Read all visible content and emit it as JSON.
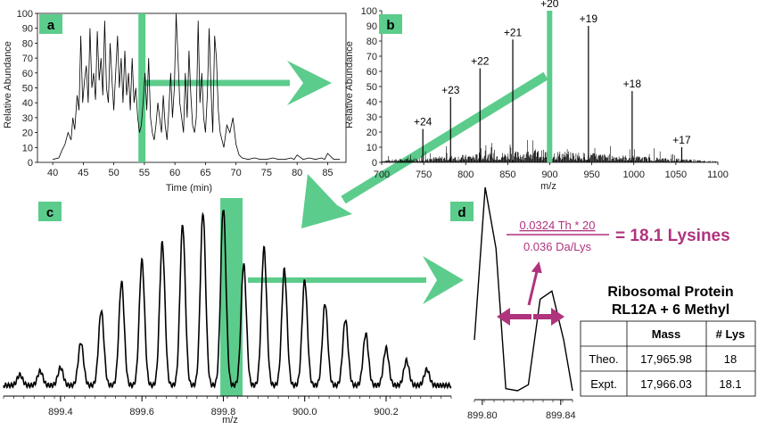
{
  "colors": {
    "accent_green": "#5ccc8c",
    "highlight_magenta": "#b0337e",
    "trace": "#000000"
  },
  "chart_data": [
    {
      "id": "a",
      "type": "line",
      "panel_label": "a",
      "xlabel": "Time (min)",
      "ylabel": "Relative Abundance",
      "xlim": [
        37.5,
        88
      ],
      "ylim": [
        0,
        100
      ],
      "xticks": [
        40,
        45,
        50,
        55,
        60,
        65,
        70,
        75,
        80,
        85
      ],
      "yticks": [
        0,
        10,
        20,
        30,
        40,
        50,
        60,
        70,
        80,
        90,
        100
      ],
      "highlight_x": 54.6,
      "series": [
        {
          "x": [
            40,
            41,
            41.5,
            42,
            42.5,
            43,
            43.3,
            43.6,
            44,
            44.3,
            44.6,
            44.9,
            45.2,
            45.5,
            45.8,
            46.1,
            46.4,
            46.7,
            47,
            47.3,
            47.6,
            47.9,
            48.2,
            48.5,
            48.8,
            49.1,
            49.4,
            49.7,
            50,
            50.3,
            50.6,
            50.9,
            51.2,
            51.5,
            51.8,
            52.1,
            52.4,
            52.7,
            53,
            53.3,
            53.6,
            53.9,
            54.2,
            54.5,
            54.8,
            55.1,
            55.4,
            55.7,
            56,
            56.3,
            56.6,
            56.9,
            57.2,
            57.5,
            57.8,
            58.1,
            58.4,
            58.7,
            59,
            59.3,
            59.6,
            59.9,
            60.2,
            60.5,
            60.8,
            61.1,
            61.4,
            61.7,
            62,
            62.3,
            62.6,
            62.9,
            63.2,
            63.5,
            63.8,
            64.1,
            64.4,
            64.7,
            65,
            65.3,
            65.6,
            65.9,
            66.2,
            66.5,
            66.8,
            67.1,
            67.4,
            67.7,
            68,
            68.5,
            69,
            69.5,
            70,
            70.5,
            71,
            72,
            73,
            74,
            75,
            76,
            77,
            78,
            79,
            79.5,
            80,
            81,
            82,
            83,
            84,
            84.5,
            85,
            86,
            87
          ],
          "y": [
            2,
            3,
            8,
            12,
            20,
            15,
            30,
            22,
            45,
            35,
            85,
            40,
            55,
            65,
            40,
            90,
            50,
            60,
            42,
            88,
            55,
            70,
            45,
            95,
            50,
            40,
            80,
            55,
            35,
            60,
            85,
            50,
            70,
            40,
            75,
            45,
            60,
            35,
            70,
            40,
            50,
            30,
            20,
            25,
            40,
            60,
            35,
            70,
            30,
            20,
            15,
            25,
            40,
            30,
            20,
            45,
            25,
            15,
            35,
            60,
            30,
            50,
            100,
            70,
            40,
            30,
            20,
            60,
            30,
            75,
            45,
            25,
            20,
            30,
            95,
            40,
            60,
            30,
            20,
            45,
            90,
            50,
            20,
            85,
            70,
            35,
            20,
            15,
            10,
            25,
            20,
            30,
            12,
            5,
            3,
            2,
            3,
            2,
            2,
            3,
            2,
            2,
            3,
            2,
            5,
            2,
            3,
            2,
            3,
            2,
            6,
            2,
            2
          ]
        }
      ]
    },
    {
      "id": "b",
      "type": "line",
      "panel_label": "b",
      "xlabel": "m/z",
      "ylabel": "Relative Abundance",
      "xlim": [
        700,
        1100
      ],
      "ylim": [
        0,
        100
      ],
      "xticks": [
        700,
        750,
        800,
        850,
        900,
        950,
        1000,
        1050,
        1100
      ],
      "yticks": [
        0,
        10,
        20,
        30,
        40,
        50,
        60,
        70,
        80,
        90,
        100
      ],
      "highlight_x": 899.8,
      "peaks": [
        {
          "label": "+24",
          "x": 749,
          "y": 22
        },
        {
          "label": "+23",
          "x": 782,
          "y": 43
        },
        {
          "label": "+22",
          "x": 817,
          "y": 62
        },
        {
          "label": "+21",
          "x": 856,
          "y": 81
        },
        {
          "label": "+20",
          "x": 899.8,
          "y": 100
        },
        {
          "label": "+19",
          "x": 946,
          "y": 90
        },
        {
          "label": "+18",
          "x": 998,
          "y": 47
        },
        {
          "label": "+17",
          "x": 1057,
          "y": 10
        }
      ]
    },
    {
      "id": "c",
      "type": "line",
      "panel_label": "c",
      "xlabel": "m/z",
      "xlim": [
        899.26,
        900.36
      ],
      "ylim": [
        0,
        100
      ],
      "xticks": [
        899.4,
        899.6,
        899.8,
        900.0,
        900.2
      ],
      "highlight_x": 899.82,
      "peaks": [
        {
          "x": 899.3,
          "y": 6
        },
        {
          "x": 899.35,
          "y": 8
        },
        {
          "x": 899.4,
          "y": 10
        },
        {
          "x": 899.45,
          "y": 24
        },
        {
          "x": 899.5,
          "y": 42
        },
        {
          "x": 899.55,
          "y": 58
        },
        {
          "x": 899.6,
          "y": 70
        },
        {
          "x": 899.65,
          "y": 80
        },
        {
          "x": 899.7,
          "y": 90
        },
        {
          "x": 899.75,
          "y": 97
        },
        {
          "x": 899.8,
          "y": 100
        },
        {
          "x": 899.85,
          "y": 68
        },
        {
          "x": 899.9,
          "y": 77
        },
        {
          "x": 899.95,
          "y": 65
        },
        {
          "x": 900.0,
          "y": 59
        },
        {
          "x": 900.05,
          "y": 46
        },
        {
          "x": 900.1,
          "y": 37
        },
        {
          "x": 900.15,
          "y": 29
        },
        {
          "x": 900.2,
          "y": 21
        },
        {
          "x": 900.25,
          "y": 14
        },
        {
          "x": 900.3,
          "y": 9
        }
      ]
    },
    {
      "id": "d",
      "type": "line",
      "panel_label": "d",
      "xlim": [
        899.796,
        899.846
      ],
      "ylim": [
        0,
        100
      ],
      "xticks": [
        899.8,
        899.84
      ],
      "xticklabels": [
        "899.80",
        "899.84"
      ],
      "series": [
        {
          "x": [
            899.796,
            899.8015,
            899.807,
            899.812,
            899.818,
            899.8235,
            899.8295,
            899.8355,
            899.8415,
            899.846
          ],
          "y": [
            25,
            100,
            70,
            1,
            0,
            3,
            45,
            49,
            25,
            0
          ]
        }
      ]
    }
  ],
  "equation": {
    "numerator": "0.0324 Th * 20",
    "denominator": "0.036 Da/Lys",
    "result": "= 18.1 Lysines"
  },
  "protein": {
    "title_line1": "Ribosomal Protein",
    "title_line2": "RL12A + 6 Methyl"
  },
  "table": {
    "headers": [
      "",
      "Mass",
      "# Lys"
    ],
    "rows": [
      [
        "Theo.",
        "17,965.98",
        "18"
      ],
      [
        "Expt.",
        "17,966.03",
        "18.1"
      ]
    ]
  }
}
